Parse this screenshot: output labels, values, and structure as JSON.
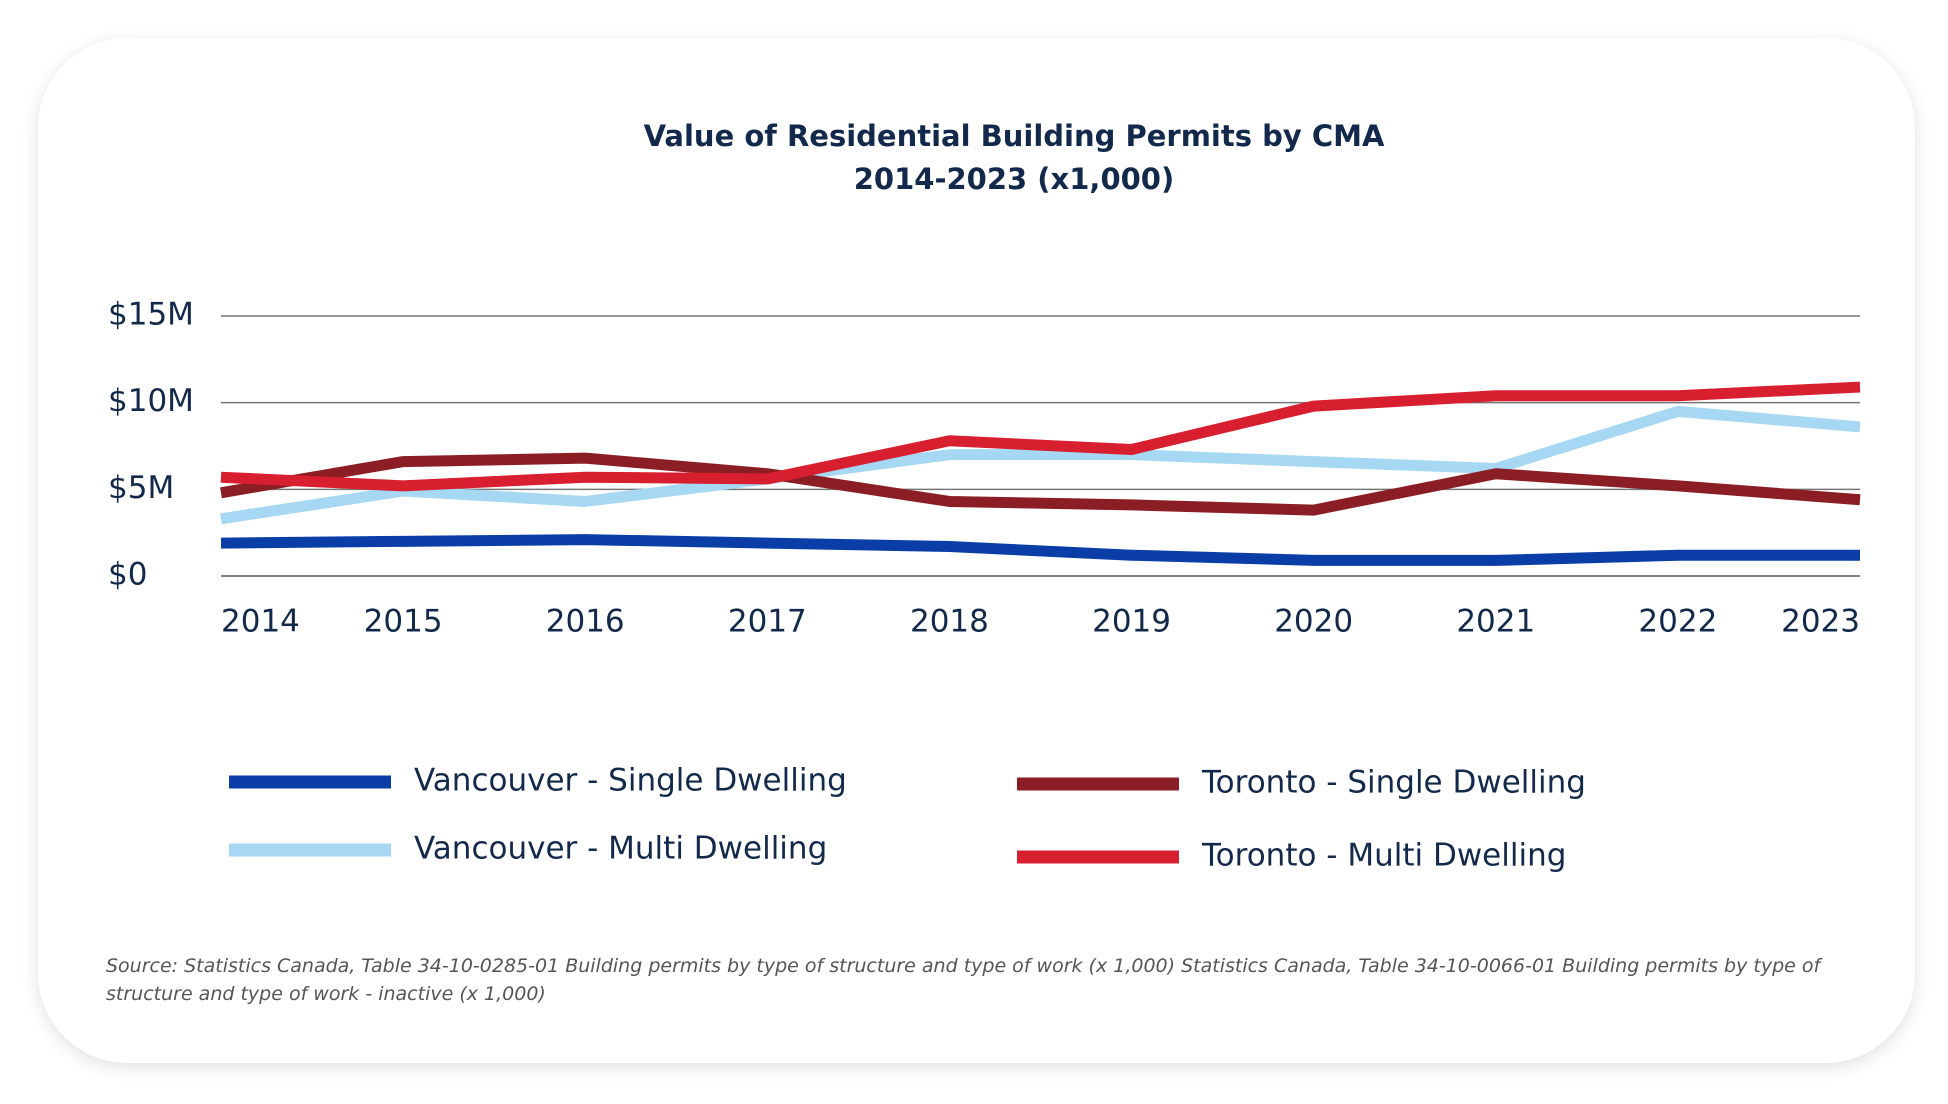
{
  "chart_data": {
    "type": "line",
    "title": "Value of Residential Building Permits by CMA",
    "subtitle": "2014-2023 (x1,000)",
    "categories": [
      "2014",
      "2015",
      "2016",
      "2017",
      "2018",
      "2019",
      "2020",
      "2021",
      "2022",
      "2023"
    ],
    "series": [
      {
        "name": "Vancouver - Single Dwelling",
        "color": "#0a3ea6",
        "values": [
          1.9,
          2.0,
          2.1,
          1.9,
          1.7,
          1.2,
          0.9,
          0.9,
          1.2,
          1.2
        ]
      },
      {
        "name": "Vancouver - Multi Dwelling",
        "color": "#a6d8f4",
        "values": [
          3.3,
          4.9,
          4.3,
          5.6,
          7.0,
          7.0,
          6.6,
          6.2,
          9.5,
          8.6
        ]
      },
      {
        "name": "Toronto - Single Dwelling",
        "color": "#8b1e24",
        "values": [
          4.8,
          6.6,
          6.8,
          5.9,
          4.3,
          4.1,
          3.8,
          5.9,
          5.2,
          4.4
        ]
      },
      {
        "name": "Toronto - Multi Dwelling",
        "color": "#d71f30",
        "values": [
          5.7,
          5.2,
          5.7,
          5.6,
          7.8,
          7.3,
          9.8,
          10.4,
          10.4,
          10.9
        ]
      }
    ],
    "ylim": [
      0,
      15
    ],
    "yticks": [
      {
        "value": 0,
        "label": "$0"
      },
      {
        "value": 5,
        "label": "$5M"
      },
      {
        "value": 10,
        "label": "$10M"
      },
      {
        "value": 15,
        "label": "$15M"
      }
    ],
    "grid": true,
    "source": "Source: Statistics Canada, Table 34-10-0285-01 Building permits by type of structure and type of work (x 1,000) Statistics Canada, Table 34-10-0066-01 Building permits by type of structure and type of work - inactive (x 1,000)"
  }
}
